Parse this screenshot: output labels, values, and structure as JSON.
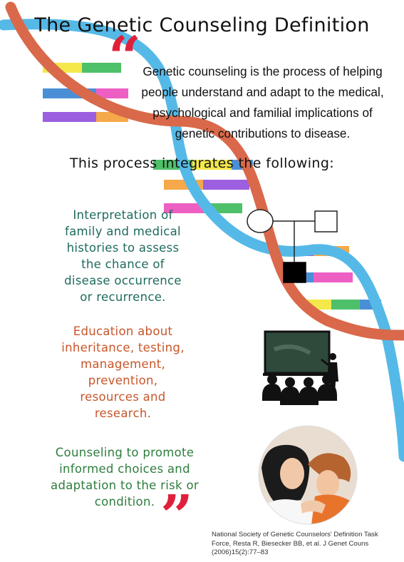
{
  "title": "The Genetic Counseling Definition",
  "quote_marks": {
    "open": "“",
    "close": "”"
  },
  "definition_lines": [
    "Genetic counseling is the process of helping",
    "people understand and adapt to the medical,",
    "psychological and familial implications of",
    "genetic contributions to disease."
  ],
  "subheading": "This process integrates the following:",
  "items": [
    {
      "lines": [
        "Interpretation of",
        "family and medical",
        "histories to assess",
        "the chance of",
        "disease occurrence",
        "or recurrence."
      ],
      "color": "#1e6b5c",
      "icon": "pedigree-icon"
    },
    {
      "lines": [
        "Education about",
        "inheritance, testing,",
        "management,",
        "prevention,",
        "resources and",
        "research."
      ],
      "color": "#c8562a",
      "icon": "classroom-icon"
    },
    {
      "lines": [
        "Counseling to promote",
        "informed choices and",
        "adaptation to the risk or",
        "condition."
      ],
      "color": "#2e7d3e",
      "icon": "counseling-illustration"
    }
  ],
  "citation_lines": [
    "National Society of  Genetic Counselors' Definition Task",
    "Force, Resta R, Biesecker BB, et  al. J Genet Couns",
    "(2006)15(2):77–83"
  ],
  "colors": {
    "dna_strand_blue": "#55b9e8",
    "dna_strand_orange": "#d9694a",
    "quote_red": "#e0203a",
    "rung_palette": [
      "#f4e84a",
      "#4fc06a",
      "#4a8fd6",
      "#ee5fc4",
      "#9b5fe0",
      "#f5a94a"
    ]
  }
}
